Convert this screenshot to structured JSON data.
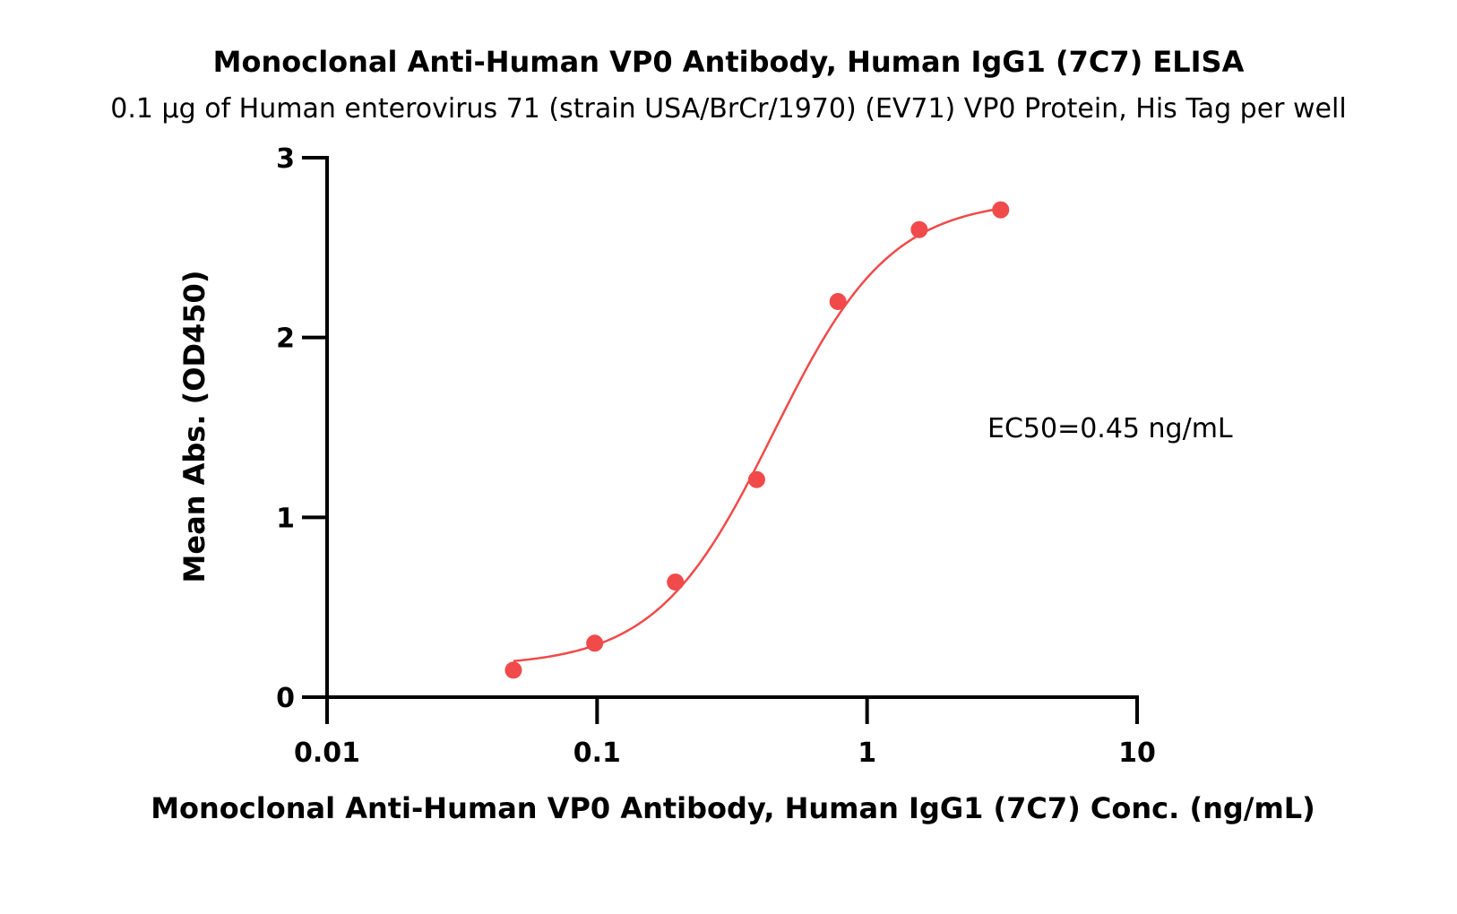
{
  "chart_data": {
    "type": "scatter",
    "title": "Monoclonal Anti-Human VP0 Antibody, Human IgG1 (7C7) ELISA",
    "subtitle": "0.1 µg of Human enterovirus 71 (strain USA/BrCr/1970) (EV71) VP0 Protein, His Tag per well",
    "xlabel": "Monoclonal Anti-Human VP0 Antibody, Human IgG1 (7C7) Conc. (ng/mL)",
    "ylabel": "Mean Abs. (OD450)",
    "xscale": "log",
    "xlim": [
      0.01,
      10
    ],
    "ylim": [
      0,
      3
    ],
    "xticks": [
      0.01,
      0.1,
      1,
      10
    ],
    "xtick_labels": [
      "0.01",
      "0.1",
      "1",
      "10"
    ],
    "yticks": [
      0,
      1,
      2,
      3
    ],
    "ytick_labels": [
      "0",
      "1",
      "2",
      "3"
    ],
    "grid": false,
    "color": "#f04a4a",
    "series": [
      {
        "x": [
          0.049,
          0.098,
          0.195,
          0.39,
          0.78,
          1.56,
          3.125
        ],
        "y": [
          0.15,
          0.3,
          0.64,
          1.21,
          2.2,
          2.6,
          2.71
        ]
      }
    ],
    "fit_curve": {
      "type": "4PL",
      "bottom": 0.17,
      "top": 2.77,
      "ec50": 0.45,
      "hill": 2.0
    },
    "annotation": "EC50=0.45 ng/mL"
  }
}
